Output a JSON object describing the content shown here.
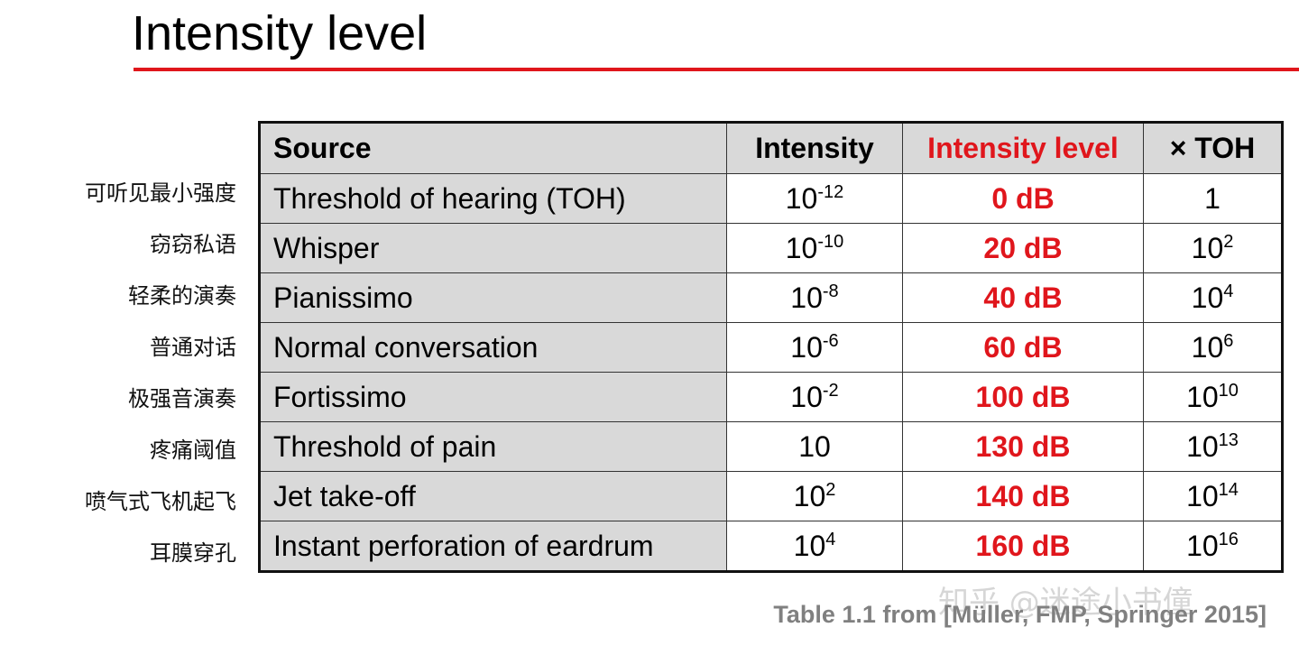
{
  "title": "Intensity level",
  "colors": {
    "accent": "#e0161c",
    "header_bg": "#d9d9d9",
    "caption": "#808080"
  },
  "side_labels": [
    "可听见最小强度",
    "窃窃私语",
    "轻柔的演奏",
    "普通对话",
    "极强音演奏",
    "疼痛阈值",
    "喷气式飞机起飞",
    "耳膜穿孔"
  ],
  "table": {
    "headers": {
      "source": "Source",
      "intensity": "Intensity",
      "level": "Intensity level",
      "toh": "×  TOH"
    },
    "rows": [
      {
        "source": "Threshold of hearing (TOH)",
        "int_base": "10",
        "int_exp": "-12",
        "level": "0 dB",
        "toh_base": "1",
        "toh_exp": ""
      },
      {
        "source": "Whisper",
        "int_base": "10",
        "int_exp": "-10",
        "level": "20 dB",
        "toh_base": "10",
        "toh_exp": "2"
      },
      {
        "source": "Pianissimo",
        "int_base": "10",
        "int_exp": "-8",
        "level": "40 dB",
        "toh_base": "10",
        "toh_exp": "4"
      },
      {
        "source": "Normal conversation",
        "int_base": "10",
        "int_exp": "-6",
        "level": "60 dB",
        "toh_base": "10",
        "toh_exp": "6"
      },
      {
        "source": "Fortissimo",
        "int_base": "10",
        "int_exp": "-2",
        "level": "100 dB",
        "toh_base": "10",
        "toh_exp": "10"
      },
      {
        "source": "Threshold of pain",
        "int_base": "10",
        "int_exp": "",
        "level": "130 dB",
        "toh_base": "10",
        "toh_exp": "13"
      },
      {
        "source": "Jet take-off",
        "int_base": "10",
        "int_exp": "2",
        "level": "140 dB",
        "toh_base": "10",
        "toh_exp": "14"
      },
      {
        "source": "Instant perforation of eardrum",
        "int_base": "10",
        "int_exp": "4",
        "level": "160 dB",
        "toh_base": "10",
        "toh_exp": "16"
      }
    ]
  },
  "caption": "Table 1.1 from [Müller, FMP, Springer 2015]",
  "watermark": "知乎 @迷途小书僮"
}
